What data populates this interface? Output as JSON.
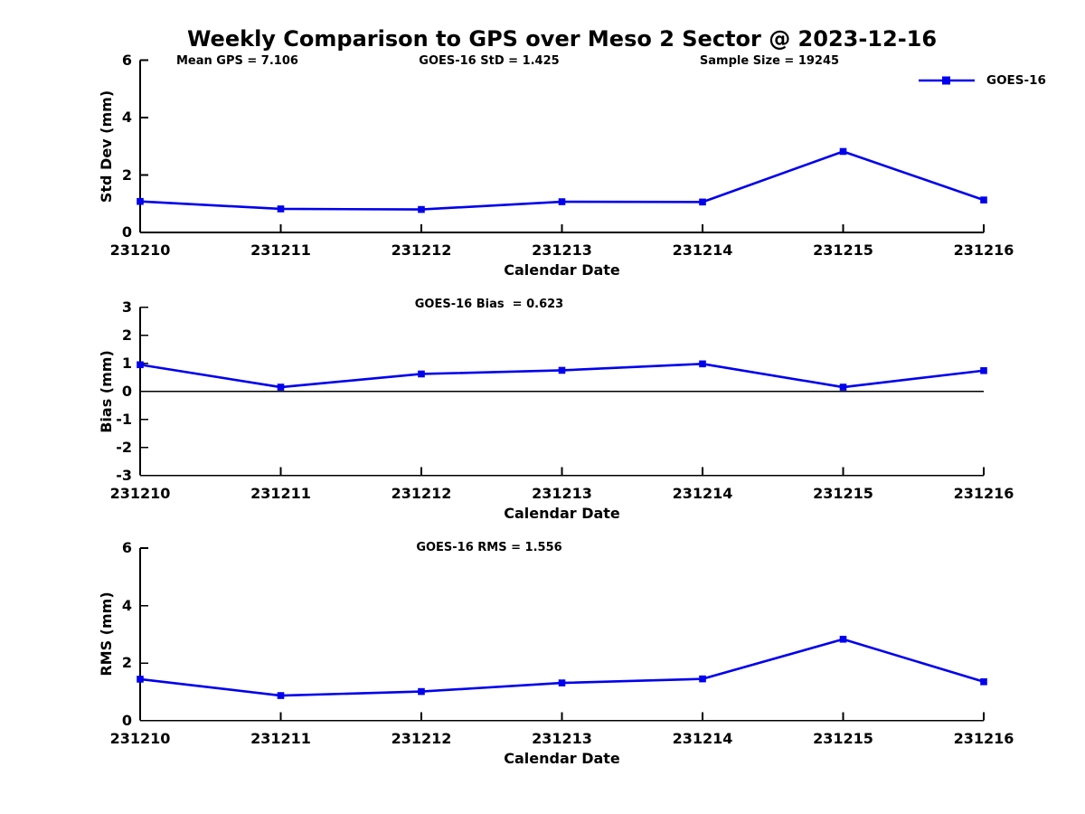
{
  "page_title": "Weekly Comparison to GPS over Meso 2 Sector @ 2023-12-16",
  "legend": {
    "label": "GOES-16"
  },
  "colors": {
    "line": "#0000EE",
    "axis": "#000000",
    "text": "#000000",
    "background": "#FFFFFF"
  },
  "chart_data": [
    {
      "type": "line",
      "title": "",
      "annotations": [
        "Mean GPS = 7.106",
        "GOES-16 StD = 1.425",
        "Sample Size = 19245"
      ],
      "xlabel": "Calendar Date",
      "ylabel": "Std Dev (mm)",
      "categories": [
        "231210",
        "231211",
        "231212",
        "231213",
        "231214",
        "231215",
        "231216"
      ],
      "series": [
        {
          "name": "GOES-16",
          "marker": "square",
          "values": [
            1.08,
            0.82,
            0.8,
            1.07,
            1.06,
            2.82,
            1.13
          ]
        }
      ],
      "ylim": [
        0,
        6
      ],
      "yticks": [
        0,
        2,
        4,
        6
      ],
      "grid": false,
      "zero_line": false,
      "legend_position": "top-right"
    },
    {
      "type": "line",
      "title": "GOES-16 Bias  = 0.623",
      "annotations": [],
      "xlabel": "Calendar Date",
      "ylabel": "Bias (mm)",
      "categories": [
        "231210",
        "231211",
        "231212",
        "231213",
        "231214",
        "231215",
        "231216"
      ],
      "series": [
        {
          "name": "GOES-16",
          "marker": "square",
          "values": [
            0.95,
            0.15,
            0.62,
            0.75,
            0.98,
            0.15,
            0.74
          ]
        }
      ],
      "ylim": [
        -3,
        3
      ],
      "yticks": [
        -3,
        -2,
        -1,
        0,
        1,
        2,
        3
      ],
      "grid": false,
      "zero_line": true,
      "legend_position": "none"
    },
    {
      "type": "line",
      "title": "GOES-16 RMS = 1.556",
      "annotations": [],
      "xlabel": "Calendar Date",
      "ylabel": "RMS (mm)",
      "categories": [
        "231210",
        "231211",
        "231212",
        "231213",
        "231214",
        "231215",
        "231216"
      ],
      "series": [
        {
          "name": "GOES-16",
          "marker": "square",
          "values": [
            1.44,
            0.87,
            1.01,
            1.31,
            1.45,
            2.83,
            1.35
          ]
        }
      ],
      "ylim": [
        0,
        6
      ],
      "yticks": [
        0,
        2,
        4,
        6
      ],
      "grid": false,
      "zero_line": false,
      "legend_position": "none"
    }
  ]
}
